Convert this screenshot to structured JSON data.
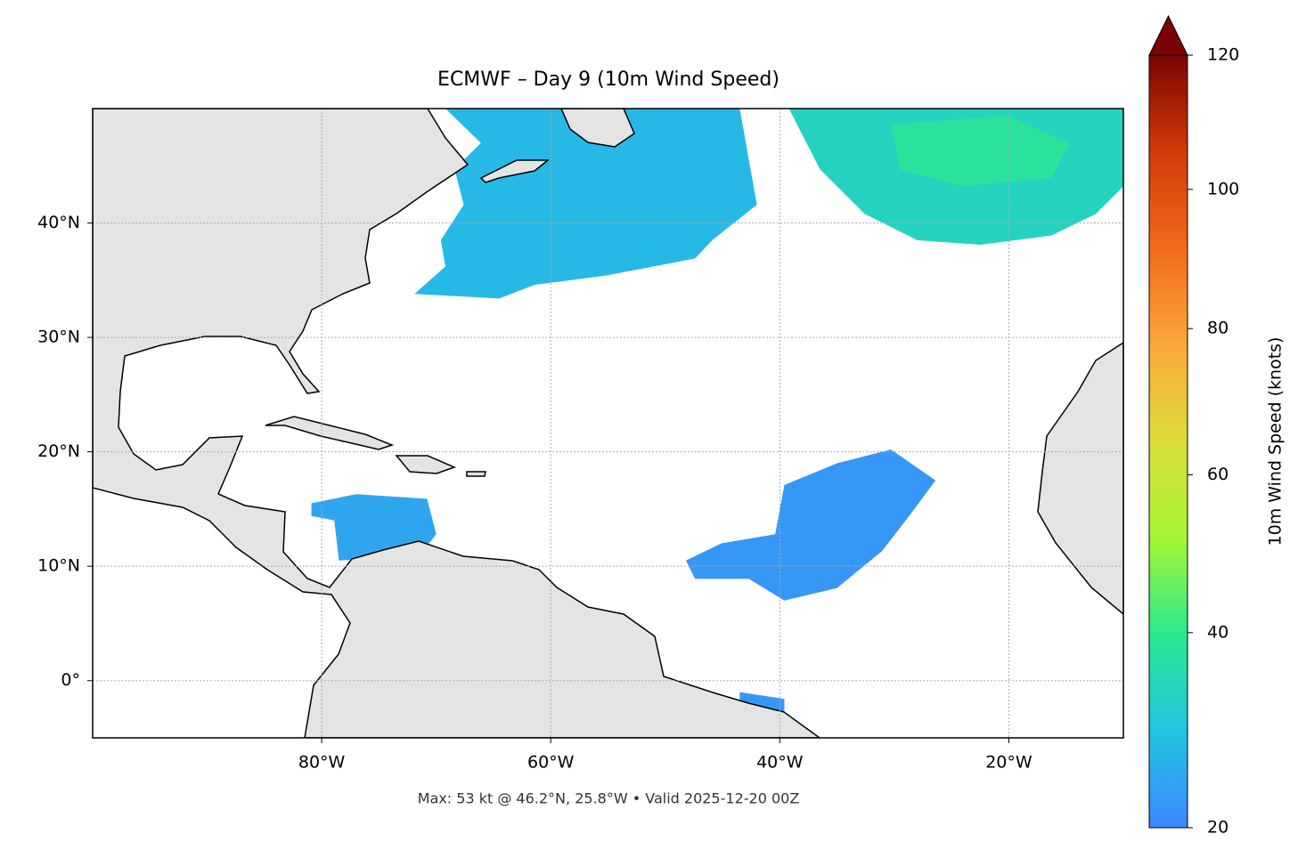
{
  "chart_data": {
    "type": "map",
    "title": "ECMWF – Day 9 (10m Wind Speed)",
    "footnote": "Max: 53 kt @ 46.2°N, 25.8°W • Valid 2025-12-20 00Z",
    "xlim": [
      -100,
      -10
    ],
    "ylim": [
      -5,
      50
    ],
    "xticks": [
      {
        "value": -80,
        "label": "80°W"
      },
      {
        "value": -60,
        "label": "60°W"
      },
      {
        "value": -40,
        "label": "40°W"
      },
      {
        "value": -20,
        "label": "20°W"
      }
    ],
    "yticks": [
      {
        "value": 0,
        "label": "0°"
      },
      {
        "value": 10,
        "label": "10°N"
      },
      {
        "value": 20,
        "label": "20°N"
      },
      {
        "value": 30,
        "label": "30°N"
      },
      {
        "value": 40,
        "label": "40°N"
      }
    ],
    "grid": true,
    "colorbar": {
      "label": "10m Wind Speed (knots)",
      "lim": [
        20,
        120
      ],
      "ticks": [
        20,
        40,
        60,
        80,
        100,
        120
      ],
      "gamma": 0.855,
      "extend": "max",
      "colormap": [
        "#3e85ff",
        "#22c4e0",
        "#2ae88f",
        "#a4f535",
        "#dcdc3a",
        "#fba83a",
        "#f06a1c",
        "#d13b08",
        "#7a0403"
      ]
    },
    "regions": [
      {
        "speed": 27,
        "lon": [
          -69.2,
          -43.5,
          -42,
          -45.9,
          -47.4,
          -55.2,
          -61.4,
          -64.5,
          -71.9,
          -69.2,
          -69.6,
          -67.6,
          -68.4,
          -66.1
        ],
        "lat": [
          50,
          50,
          41.6,
          38.5,
          36.9,
          35.4,
          34.6,
          33.4,
          33.8,
          36.2,
          38.5,
          41.6,
          44.7,
          47.0
        ]
      },
      {
        "speed": 33,
        "lon": [
          -39.2,
          -10,
          -10,
          -12.4,
          -16.3,
          -22.5,
          -28,
          -32.6,
          -36.5
        ],
        "lat": [
          50,
          50,
          43.2,
          40.8,
          38.9,
          38.1,
          38.5,
          40.8,
          44.7
        ]
      },
      {
        "speed": 38,
        "lon": [
          -30.3,
          -20.2,
          -14.7,
          -16.3,
          -24.1,
          -29.5
        ],
        "lat": [
          48.6,
          49.4,
          47.0,
          43.9,
          43.2,
          44.7
        ]
      },
      {
        "speed": 24,
        "lon": [
          -80.9,
          -77,
          -70.8,
          -70,
          -71.5,
          -78.5,
          -78.9,
          -80.9
        ],
        "lat": [
          15.5,
          16.3,
          15.9,
          12.8,
          10.9,
          10.5,
          14,
          14.4
        ]
      },
      {
        "speed": 22,
        "lon": [
          -48.2,
          -45.1,
          -40.4,
          -39.6,
          -35,
          -30.3,
          -26.4,
          -28.7,
          -31.1,
          -35,
          -39.6,
          -42.7,
          -47.4
        ],
        "lat": [
          10.5,
          12.0,
          12.8,
          17.1,
          19,
          20.2,
          17.5,
          14.4,
          11.3,
          8.1,
          7,
          8.9,
          8.9
        ]
      },
      {
        "speed": 22,
        "lon": [
          -43.5,
          -39.6,
          -39.6,
          -43.5
        ],
        "lat": [
          -1,
          -1.6,
          -2.7,
          -2.2
        ]
      }
    ]
  }
}
